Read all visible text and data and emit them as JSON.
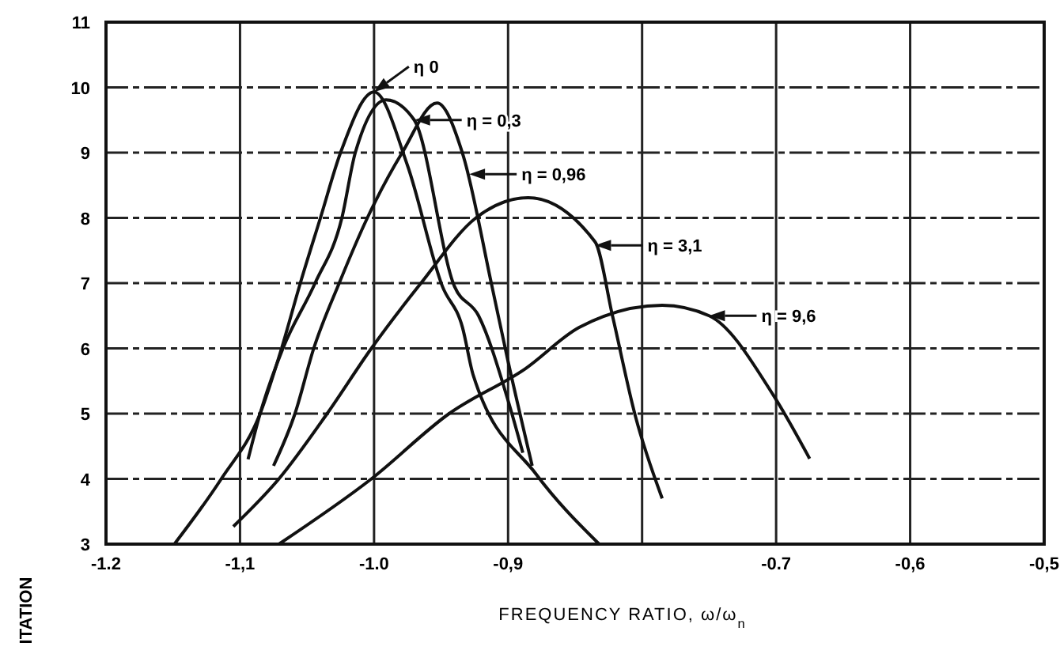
{
  "chart_data": {
    "type": "line",
    "xlabel": "FREQUENCY RATIO, ω/ω$_{n}$",
    "ylabel": "ITATION",
    "xlim": [
      -1.2,
      -0.5
    ],
    "xticks": [
      {
        "value": -1.2,
        "label": "-1.2"
      },
      {
        "value": -1.1,
        "label": "-1,1"
      },
      {
        "value": -1.0,
        "label": "-1.0"
      },
      {
        "value": -0.9,
        "label": "-0,9"
      },
      {
        "value": -0.8,
        "label": null
      },
      {
        "value": -0.7,
        "label": "-0.7"
      },
      {
        "value": -0.6,
        "label": "-0,6"
      },
      {
        "value": -0.5,
        "label": "-0,5"
      }
    ],
    "ylim": [
      3,
      11
    ],
    "yticks": [
      3,
      4,
      5,
      6,
      7,
      8,
      9,
      10,
      11
    ],
    "grid": true,
    "line_style": "solid",
    "marker": "none",
    "series": [
      {
        "color": "#111111",
        "x": [
          -1.149,
          -1.114,
          -1.085,
          -1.069,
          -1.055,
          -1.04,
          -1.025,
          -1.0,
          -0.975,
          -0.949,
          -0.934,
          -0.926,
          -0.879,
          -0.832
        ],
        "values": [
          3,
          4,
          5,
          6,
          7,
          8,
          9,
          9.93,
          8.8,
          6.95,
          6.32,
          5.59,
          4.07,
          3
        ]
      },
      {
        "color": "#111111",
        "x": [
          -1.094,
          -1.085,
          -1.068,
          -1.044,
          -1.024,
          -1.014,
          -0.991,
          -0.97,
          -0.94,
          -0.922,
          -0.9,
          -0.889
        ],
        "values": [
          4.3,
          5,
          6,
          7,
          8,
          9,
          9.81,
          9.5,
          6.95,
          6.5,
          5.2,
          4.4
        ]
      },
      {
        "color": "#111111",
        "x": [
          -1.075,
          -1.059,
          -1.045,
          -1.026,
          -1.005,
          -0.979,
          -0.953,
          -0.934,
          -0.912,
          -0.9,
          -0.882
        ],
        "values": [
          4.2,
          5,
          6,
          7,
          8,
          9,
          9.76,
          8.99,
          6.95,
          5.8,
          4.2
        ]
      },
      {
        "color": "#111111",
        "x": [
          -1.105,
          -1.071,
          -1.035,
          -1.002,
          -0.965,
          -0.924,
          -0.885,
          -0.835,
          -0.822,
          -0.805,
          -0.785
        ],
        "values": [
          3.27,
          4,
          5,
          6,
          7,
          8,
          8.31,
          7.63,
          6.49,
          4.96,
          3.7
        ]
      },
      {
        "color": "#111111",
        "x": [
          -1.071,
          -1.002,
          -0.944,
          -0.887,
          -0.847,
          -0.785,
          -0.75,
          -0.702,
          -0.675
        ],
        "values": [
          3,
          4,
          5,
          5.69,
          6.32,
          6.66,
          6.5,
          5.28,
          4.31
        ]
      }
    ],
    "annotations": [
      {
        "text": "η 0",
        "x": -1.0,
        "y": 9.93
      },
      "η = 0,3",
      {
        "text": "η = 0,96",
        "x": -0.929,
        "y": 8.67
      },
      {
        "text": "η = 3,1",
        "x": -0.835,
        "y": 7.58
      },
      "η = 9,6"
    ]
  }
}
